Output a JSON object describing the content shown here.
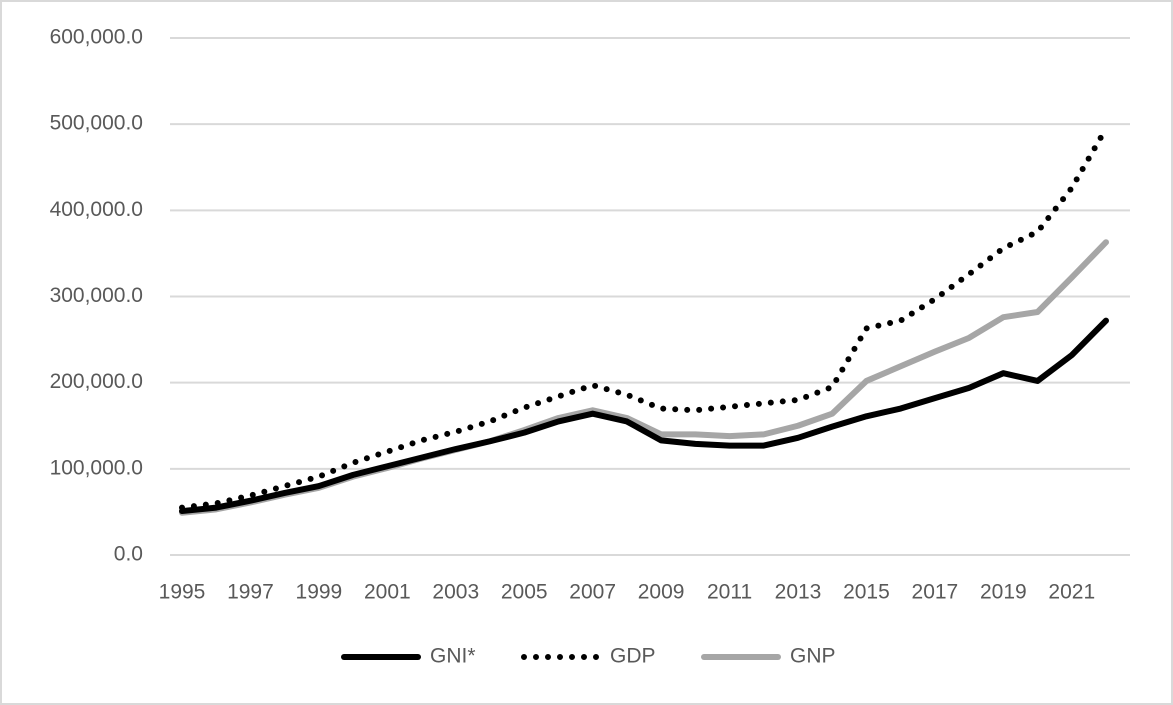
{
  "chart_data": {
    "type": "line",
    "categories": [
      "1995",
      null,
      "1997",
      null,
      "1999",
      null,
      "2001",
      null,
      "2003",
      null,
      "2005",
      null,
      "2007",
      null,
      "2009",
      null,
      "2011",
      null,
      "2013",
      null,
      "2015",
      null,
      "2017",
      null,
      "2019",
      null,
      "2021",
      null
    ],
    "series": [
      {
        "name": "GNI*",
        "color": "#000000",
        "style": "solid",
        "values": [
          51000,
          55000,
          63000,
          72000,
          80000,
          93000,
          103000,
          113000,
          123000,
          132000,
          142000,
          155000,
          164000,
          155000,
          133000,
          129000,
          127000,
          127000,
          136000,
          149000,
          161000,
          170000,
          182000,
          194000,
          211000,
          202000,
          232000,
          272000
        ]
      },
      {
        "name": "GDP",
        "color": "#000000",
        "style": "dotted",
        "values": [
          55000,
          60000,
          69000,
          80000,
          91000,
          107000,
          120000,
          133000,
          143000,
          155000,
          171000,
          184000,
          197000,
          186000,
          170000,
          168000,
          172000,
          176000,
          180000,
          195000,
          263000,
          272000,
          297000,
          326000,
          356000,
          375000,
          426000,
          495000
        ]
      },
      {
        "name": "GNP",
        "color": "#a6a6a6",
        "style": "solid",
        "values": [
          49000,
          53000,
          61000,
          70000,
          78000,
          91000,
          101000,
          112000,
          122000,
          132000,
          145000,
          159000,
          168000,
          159000,
          140000,
          140000,
          138000,
          140000,
          150000,
          164000,
          202000,
          219000,
          236000,
          252000,
          276000,
          282000,
          322000,
          363000
        ]
      }
    ],
    "ylim": [
      0,
      600000
    ],
    "yticks": [
      {
        "value": 0,
        "label": "0.0"
      },
      {
        "value": 100000,
        "label": "100,000.0"
      },
      {
        "value": 200000,
        "label": "200,000.0"
      },
      {
        "value": 300000,
        "label": "300,000.0"
      },
      {
        "value": 400000,
        "label": "400,000.0"
      },
      {
        "value": 500000,
        "label": "500,000.0"
      },
      {
        "value": 600000,
        "label": "600,000.0"
      }
    ],
    "grid": true,
    "legend": "bottom"
  }
}
